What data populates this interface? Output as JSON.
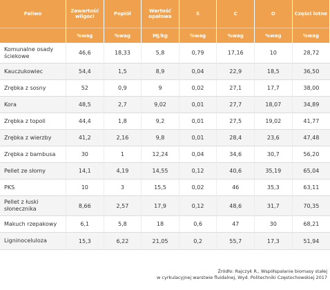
{
  "table": {
    "headers": [
      "Paliwo",
      "Zawartość wilgoci",
      "Popiół",
      "Wartość opałowa",
      "S",
      "C",
      "O",
      "Części lotne"
    ],
    "units": [
      "",
      "%wag",
      "%wag",
      "MJ/kg",
      "%wag",
      "%wag",
      "%wag",
      "%wag"
    ],
    "rows": [
      [
        "Komunalne osady ściekowe",
        "46,6",
        "18,33",
        "5,8",
        "0,79",
        "17,16",
        "10",
        "28,72"
      ],
      [
        "Kauczukowiec",
        "54,4",
        "1,5",
        "8,9",
        "0,04",
        "22,9",
        "18,5",
        "36,50"
      ],
      [
        "Zrębka z sosny",
        "52",
        "0,9",
        "9",
        "0,02",
        "27,1",
        "17,7",
        "38,00"
      ],
      [
        "Kora",
        "48,5",
        "2,7",
        "9,02",
        "0,01",
        "27,7",
        "18,07",
        "34,89"
      ],
      [
        "Zrębka z topoli",
        "44,4",
        "1,8",
        "9,2",
        "0,01",
        "27,5",
        "19,02",
        "41,77"
      ],
      [
        "Zrębka z wierzby",
        "41,2",
        "2,16",
        "9,8",
        "0,01",
        "28,4",
        "23,6",
        "47,48"
      ],
      [
        "Zrębka z bambusa",
        "30",
        "1",
        "12,24",
        "0,04",
        "34,6",
        "30,7",
        "56,20"
      ],
      [
        "Pellet ze słomy",
        "14,1",
        "4,19",
        "14,55",
        "0,12",
        "40,6",
        "35,19",
        "65,04"
      ],
      [
        "PKS",
        "10",
        "3",
        "15,5",
        "0,02",
        "46",
        "35,3",
        "63,11"
      ],
      [
        "Pellet z łuski słonecznika",
        "8,66",
        "2,57",
        "17,9",
        "0,12",
        "48,6",
        "31,7",
        "70,35"
      ],
      [
        "Makuch rzepakowy",
        "6,1",
        "5,8",
        "18",
        "0,6",
        "47",
        "30",
        "68,21"
      ],
      [
        "Ligninoceluloza",
        "15,3",
        "6,22",
        "21,05",
        "0,2",
        "55,7",
        "17,3",
        "51,94"
      ]
    ]
  },
  "source": {
    "line1": "Źródło: Rajczyk R., Współspalanie biomasy stałej",
    "line2": "w cyrkulacyjnej warstwie fluidalnej, Wyd. Politechniki Częstochowskiej 2017"
  },
  "colors": {
    "header_bg": "#f0a14e",
    "header_text": "#ffffff",
    "row_alt": "#f4f4f4"
  }
}
